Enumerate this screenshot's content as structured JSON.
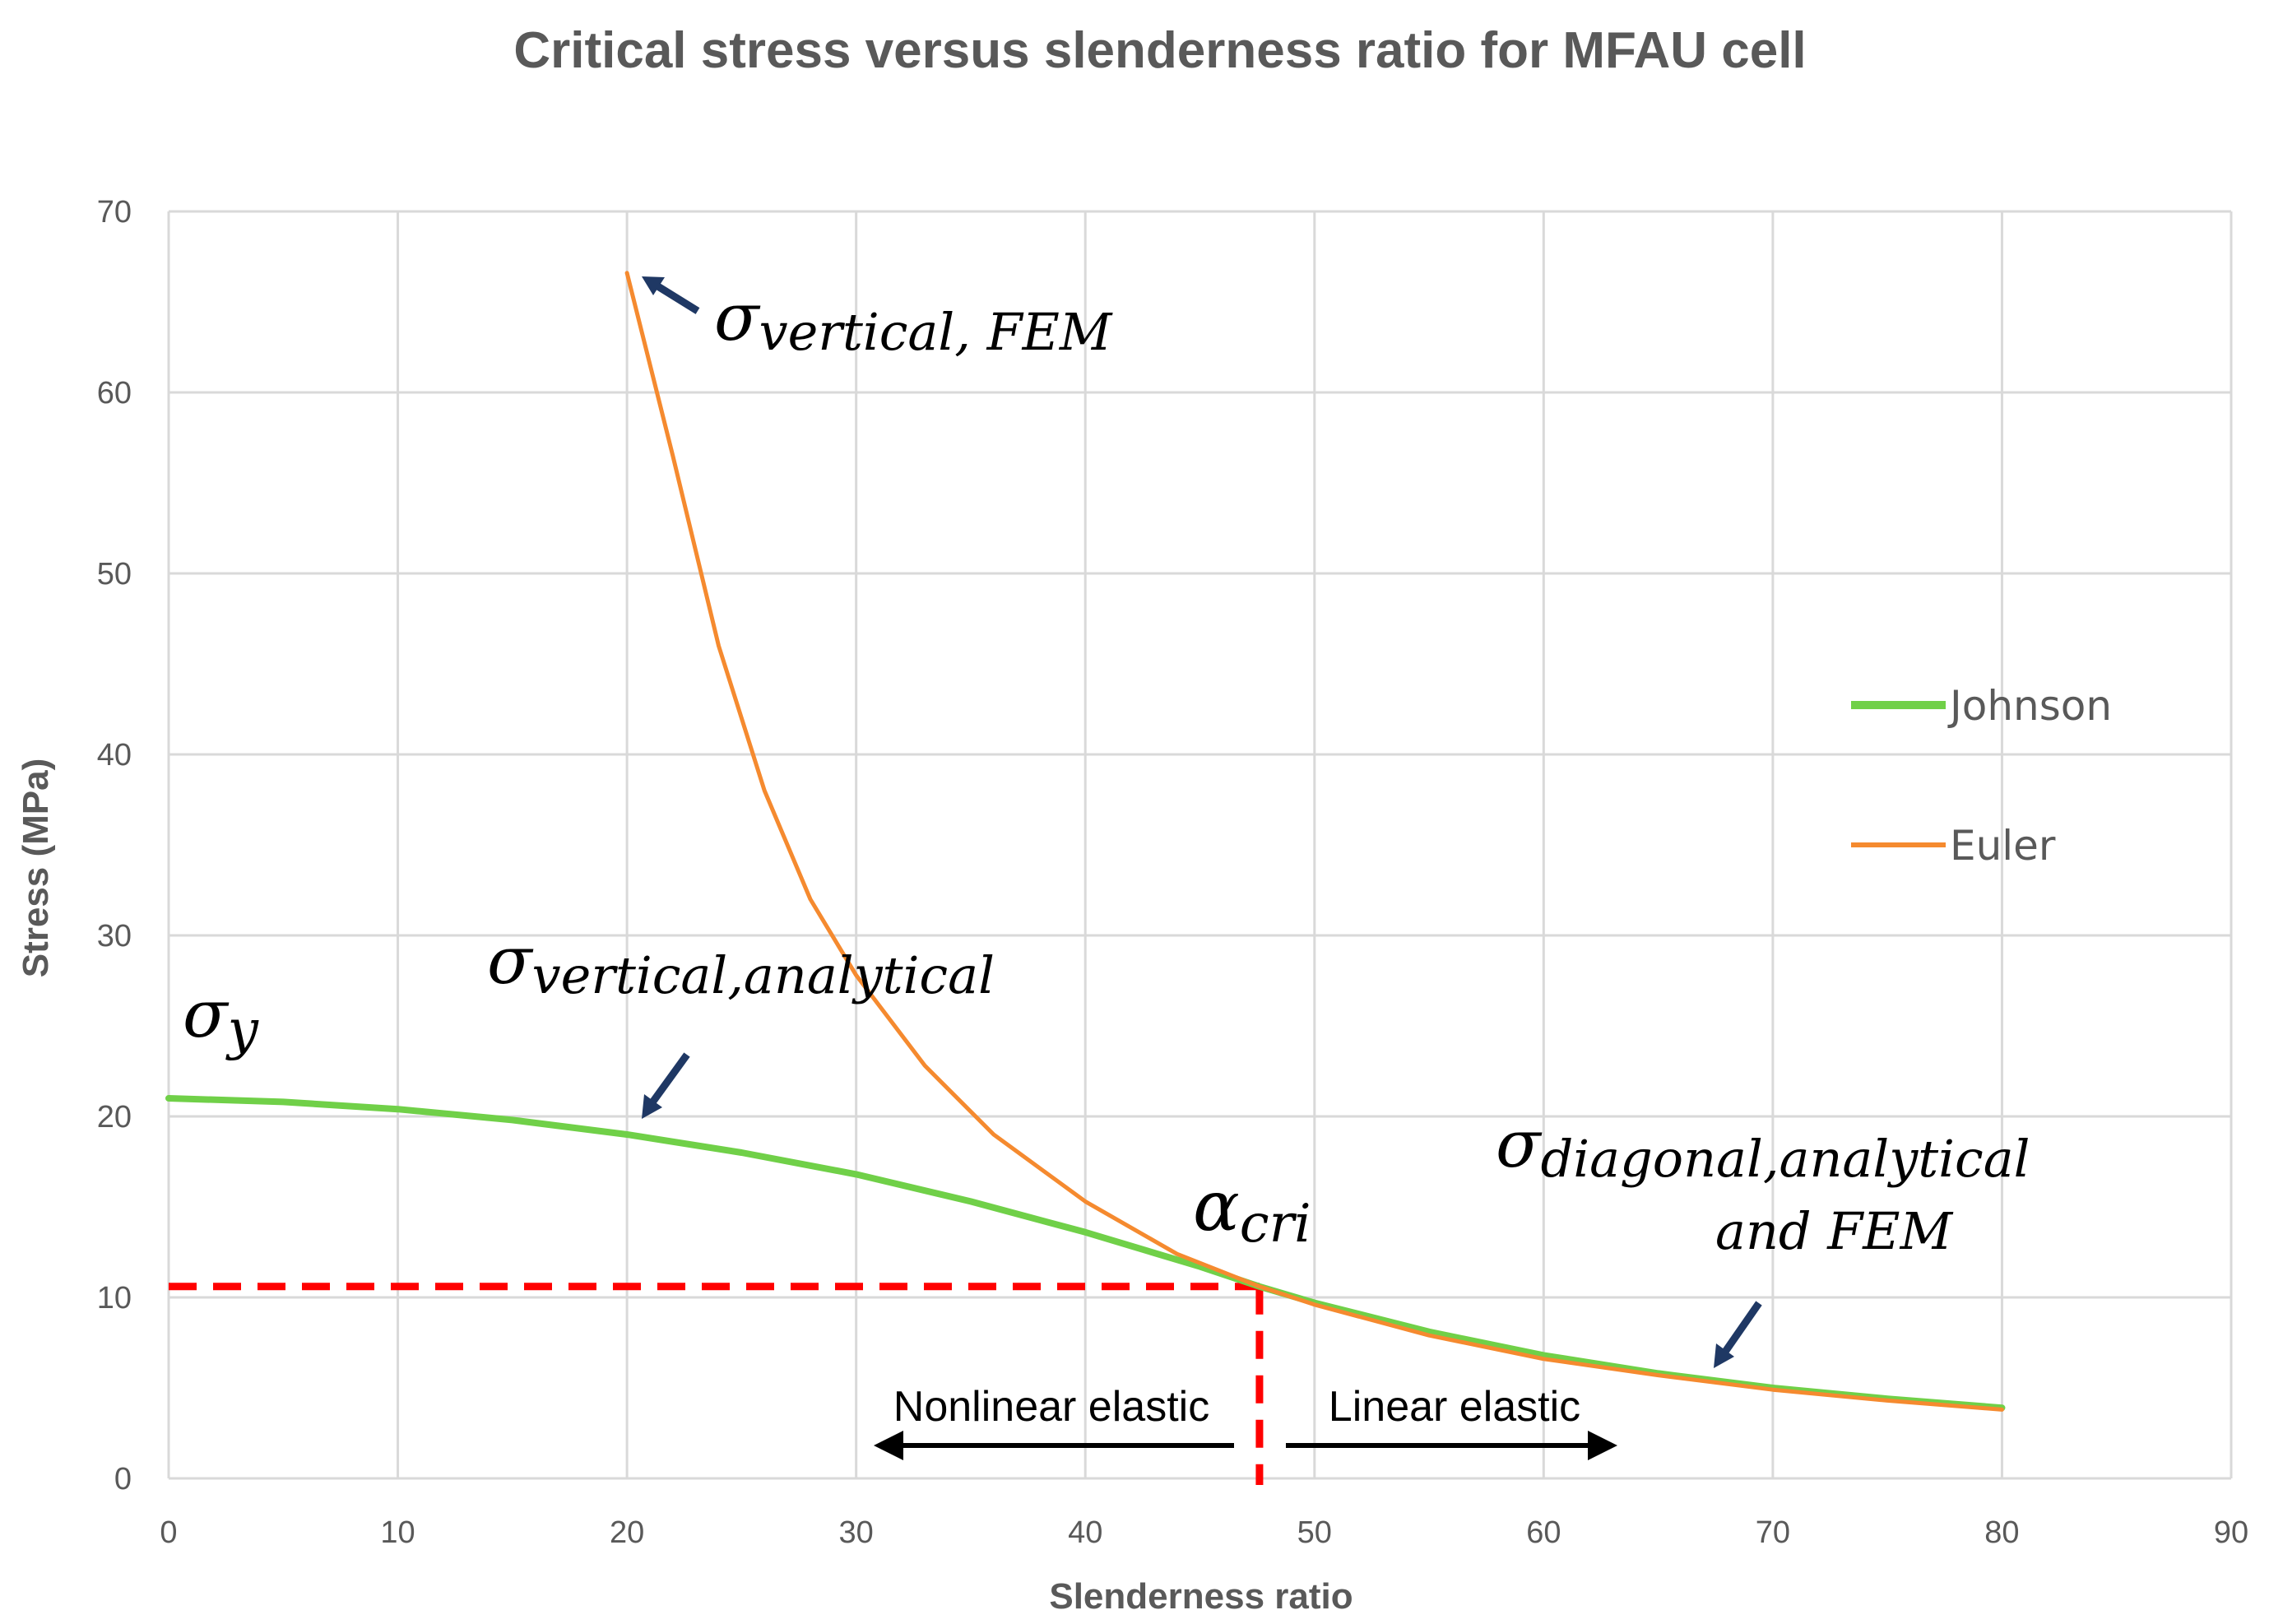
{
  "chart_data": {
    "type": "line",
    "title": "Critical stress versus slenderness ratio for MFAU cell",
    "xlabel": "Slenderness ratio",
    "ylabel": "Stress (MPa)",
    "xlim": [
      0,
      90
    ],
    "ylim": [
      0,
      70
    ],
    "xticks": [
      0,
      10,
      20,
      30,
      40,
      50,
      60,
      70,
      80,
      90
    ],
    "yticks": [
      0,
      10,
      20,
      30,
      40,
      50,
      60,
      70
    ],
    "grid": true,
    "legend_position": "right",
    "series": [
      {
        "name": "Johnson",
        "color": "#70D048",
        "x": [
          0,
          5,
          10,
          15,
          20,
          25,
          30,
          35,
          40,
          45,
          47.6,
          50,
          55,
          60,
          65,
          70,
          75,
          80
        ],
        "y": [
          21.0,
          20.8,
          20.4,
          19.8,
          19.0,
          18.0,
          16.8,
          15.3,
          13.6,
          11.7,
          10.6,
          9.7,
          8.1,
          6.8,
          5.8,
          5.0,
          4.4,
          3.9
        ]
      },
      {
        "name": "Euler",
        "color": "#F58A2F",
        "x": [
          20,
          22,
          24,
          26,
          28,
          30,
          33,
          36,
          40,
          44,
          47.6,
          50,
          55,
          60,
          65,
          70,
          75,
          80
        ],
        "y": [
          66.6,
          56.5,
          46.0,
          38.0,
          32.0,
          27.8,
          22.8,
          19.0,
          15.3,
          12.4,
          10.6,
          9.6,
          7.9,
          6.6,
          5.7,
          4.9,
          4.3,
          3.8
        ]
      }
    ],
    "reference_lines": {
      "x_value": 47.6,
      "y_value": 10.6,
      "color": "#FF0000"
    },
    "annotations": {
      "sigma_vertical_fem": {
        "base": "σ",
        "sub": "vertical, FEM"
      },
      "sigma_vertical_analytical": {
        "base": "σ",
        "sub": "vertical,analytical"
      },
      "sigma_y": {
        "base": "σ",
        "sub": "y"
      },
      "alpha_cri": {
        "base": "α",
        "sub": "cri"
      },
      "sigma_diagonal": {
        "base": "σ",
        "sub": "diagonal,analytical",
        "line2": "and FEM"
      },
      "nonlinear_elastic": "Nonlinear elastic",
      "linear_elastic": "Linear elastic"
    }
  }
}
